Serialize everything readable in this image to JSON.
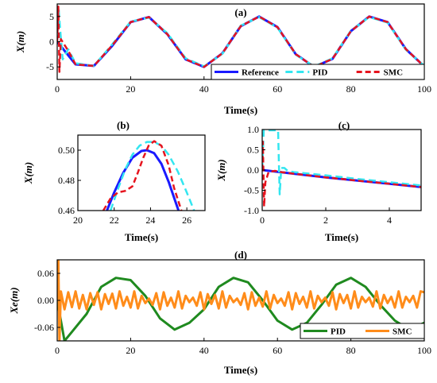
{
  "colors": {
    "reference": "#1a1aff",
    "pid": "#33e6f0",
    "smc": "#e6141e",
    "pid_error": "#1f8a1f",
    "smc_error": "#ff8c1a"
  },
  "chart_data": [
    {
      "panel": "(a)",
      "type": "line",
      "xlabel": "Time(s)",
      "ylabel": "X(m)",
      "xlim": [
        0,
        100
      ],
      "ylim": [
        -7.5,
        7.5
      ],
      "xticks": [
        "0",
        "20",
        "40",
        "60",
        "80",
        "100"
      ],
      "yticks": [
        "-5",
        "0",
        "5"
      ],
      "legend": "bottom-right",
      "series": [
        {
          "name": "Reference",
          "x": [
            0,
            5,
            10,
            15,
            20,
            25,
            30,
            35,
            40,
            45,
            50,
            55,
            60,
            65,
            70,
            75,
            80,
            85,
            90,
            95,
            100
          ],
          "y": [
            0,
            -4.5,
            -4.8,
            -0.8,
            3.9,
            4.9,
            1.5,
            -3.5,
            -5,
            -2.3,
            3.1,
            5,
            2.9,
            -2.5,
            -5,
            -3.4,
            2.1,
            5,
            3.9,
            -1.5,
            -4.9
          ]
        },
        {
          "name": "PID",
          "x": [
            0,
            0.4,
            0.8,
            1.5,
            3,
            5,
            10,
            15,
            20,
            25,
            30,
            35,
            40,
            45,
            50,
            55,
            60,
            65,
            70,
            75,
            80,
            85,
            90,
            95,
            100
          ],
          "y": [
            0,
            6.5,
            2.5,
            -3.5,
            -1.5,
            -4.3,
            -4.8,
            -0.5,
            4,
            4.8,
            1.7,
            -3.3,
            -4.9,
            -2.4,
            3.2,
            4.9,
            2.8,
            -2.6,
            -4.9,
            -3.3,
            2.2,
            4.9,
            3.8,
            -1.6,
            -4.8
          ]
        },
        {
          "name": "SMC",
          "x": [
            0,
            0.3,
            0.6,
            1,
            3,
            5,
            10,
            15,
            20,
            25,
            30,
            35,
            40,
            45,
            50,
            55,
            60,
            65,
            70,
            75,
            80,
            85,
            90,
            95,
            100
          ],
          "y": [
            0,
            7,
            -6,
            0.5,
            -1.8,
            -4.5,
            -4.8,
            -0.7,
            3.9,
            4.9,
            1.5,
            -3.5,
            -5,
            -2.3,
            3.1,
            5,
            2.9,
            -2.5,
            -5,
            -3.4,
            2.1,
            5,
            3.9,
            -1.5,
            -4.9
          ]
        }
      ]
    },
    {
      "panel": "(b)",
      "type": "line",
      "xlabel": "Time(s)",
      "ylabel": "X(m)",
      "xlim": [
        20,
        27
      ],
      "ylim": [
        0.46,
        0.51
      ],
      "xticks": [
        "20",
        "22",
        "24",
        "26"
      ],
      "yticks": [
        "0.46",
        "0.48",
        "0.50"
      ],
      "series": [
        {
          "name": "Reference",
          "x": [
            21.6,
            22,
            22.5,
            23,
            23.5,
            23.8,
            24.2,
            24.6,
            25,
            25.4,
            25.6
          ],
          "y": [
            0.46,
            0.472,
            0.485,
            0.495,
            0.4995,
            0.5,
            0.498,
            0.491,
            0.479,
            0.465,
            0.458
          ]
        },
        {
          "name": "PID",
          "x": [
            21.8,
            22.2,
            22.6,
            23,
            23.4,
            23.8,
            24.2,
            24.6,
            25,
            25.5,
            26,
            26.4
          ],
          "y": [
            0.46,
            0.474,
            0.487,
            0.497,
            0.503,
            0.5055,
            0.5055,
            0.503,
            0.497,
            0.486,
            0.472,
            0.46
          ]
        },
        {
          "name": "SMC",
          "x": [
            21.4,
            21.8,
            22.2,
            22.6,
            23,
            23.3,
            23.6,
            23.9,
            24.2,
            24.6,
            25,
            25.3,
            25.7
          ],
          "y": [
            0.46,
            0.468,
            0.472,
            0.473,
            0.476,
            0.485,
            0.495,
            0.503,
            0.506,
            0.503,
            0.49,
            0.475,
            0.46
          ]
        }
      ]
    },
    {
      "panel": "(c)",
      "type": "line",
      "xlabel": "Time(s)",
      "ylabel": "X(m)",
      "xlim": [
        0,
        5
      ],
      "ylim": [
        -1,
        1
      ],
      "xticks": [
        "0",
        "2",
        "4"
      ],
      "yticks": [
        "-1.0",
        "-0.5",
        "0.0",
        "0.5",
        "1.0"
      ],
      "series": [
        {
          "name": "Reference",
          "x": [
            0,
            1,
            2,
            3,
            4,
            5
          ],
          "y": [
            0,
            -0.09,
            -0.18,
            -0.26,
            -0.34,
            -0.42
          ]
        },
        {
          "name": "PID",
          "x": [
            0,
            0.05,
            0.5,
            0.55,
            0.6,
            0.7,
            0.8,
            1,
            2,
            3,
            4,
            5
          ],
          "y": [
            0,
            0.98,
            0.98,
            -0.6,
            0.05,
            0.05,
            -0.02,
            -0.05,
            -0.13,
            -0.22,
            -0.3,
            -0.38
          ]
        },
        {
          "name": "SMC",
          "x": [
            0,
            0.02,
            0.06,
            0.1,
            0.2,
            0.4,
            0.6,
            1,
            2,
            3,
            4,
            5
          ],
          "y": [
            0,
            0.7,
            -0.9,
            -0.3,
            -0.05,
            -0.02,
            -0.05,
            -0.09,
            -0.18,
            -0.26,
            -0.34,
            -0.42
          ]
        }
      ]
    },
    {
      "panel": "(d)",
      "type": "line",
      "xlabel": "Time(s)",
      "ylabel": "Xe(m)",
      "xlim": [
        0,
        100
      ],
      "ylim": [
        -0.09,
        0.09
      ],
      "xticks": [
        "0",
        "20",
        "40",
        "60",
        "80",
        "100"
      ],
      "yticks": [
        "-0.06",
        "0.00",
        "0.06"
      ],
      "legend": "bottom-right",
      "series": [
        {
          "name": "PID",
          "x": [
            0,
            2,
            4,
            8,
            12,
            16,
            20,
            24,
            28,
            32,
            36,
            40,
            44,
            48,
            52,
            56,
            60,
            64,
            68,
            72,
            76,
            80,
            84,
            88,
            92,
            96,
            100
          ],
          "y": [
            0,
            -0.09,
            -0.07,
            -0.03,
            0.03,
            0.05,
            0.045,
            0.01,
            -0.04,
            -0.065,
            -0.05,
            -0.02,
            0.03,
            0.05,
            0.04,
            0,
            -0.045,
            -0.065,
            -0.05,
            -0.01,
            0.035,
            0.05,
            0.03,
            -0.01,
            -0.045,
            -0.065,
            -0.05
          ]
        },
        {
          "name": "SMC",
          "x": [
            0,
            0.3,
            0.6,
            1,
            2,
            3,
            4,
            5,
            6,
            7,
            8,
            9,
            10,
            11,
            12,
            13,
            14,
            15,
            16,
            17,
            18,
            19,
            20,
            21,
            22,
            23,
            24,
            25,
            26,
            27,
            28,
            29,
            30,
            31,
            32,
            33,
            34,
            35,
            36,
            37,
            38,
            39,
            40,
            41,
            42,
            43,
            44,
            45,
            46,
            47,
            48,
            49,
            50,
            51,
            52,
            53,
            54,
            55,
            56,
            57,
            58,
            59,
            60,
            61,
            62,
            63,
            64,
            65,
            66,
            67,
            68,
            69,
            70,
            71,
            72,
            73,
            74,
            75,
            76,
            77,
            78,
            79,
            80,
            81,
            82,
            83,
            84,
            85,
            86,
            87,
            88,
            89,
            90,
            91,
            92,
            93,
            94,
            95,
            96,
            97,
            98,
            99,
            100
          ],
          "y": [
            0,
            0.09,
            -0.09,
            0.02,
            -0.02,
            0.018,
            -0.015,
            0.02,
            -0.018,
            0.012,
            -0.02,
            0.016,
            -0.01,
            0.018,
            -0.02,
            0.014,
            -0.008,
            0.015,
            -0.018,
            0.02,
            -0.012,
            0.008,
            -0.016,
            0.02,
            -0.018,
            0.01,
            -0.006,
            0.004,
            -0.01,
            0.016,
            -0.02,
            0.018,
            -0.012,
            0.006,
            -0.016,
            0.02,
            -0.018,
            0.01,
            -0.004,
            0.006,
            -0.012,
            0.018,
            -0.02,
            0.014,
            -0.008,
            0.012,
            -0.018,
            0.02,
            -0.016,
            0.01,
            -0.004,
            0.004,
            -0.01,
            0.016,
            -0.02,
            0.018,
            -0.012,
            0.006,
            -0.014,
            0.02,
            -0.018,
            0.012,
            -0.006,
            0.004,
            -0.012,
            0.018,
            -0.02,
            0.016,
            -0.008,
            0.008,
            -0.016,
            0.02,
            -0.018,
            0.01,
            -0.004,
            0.006,
            -0.012,
            0.018,
            -0.02,
            0.014,
            -0.006,
            0.012,
            -0.018,
            0.02,
            -0.016,
            0.008,
            -0.004,
            0.006,
            -0.014,
            0.02,
            -0.018,
            0.012,
            -0.006,
            0.008,
            -0.016,
            0.02,
            -0.016,
            0.008,
            -0.004,
            0.01,
            -0.016,
            0.02,
            0.018
          ]
        }
      ]
    }
  ]
}
